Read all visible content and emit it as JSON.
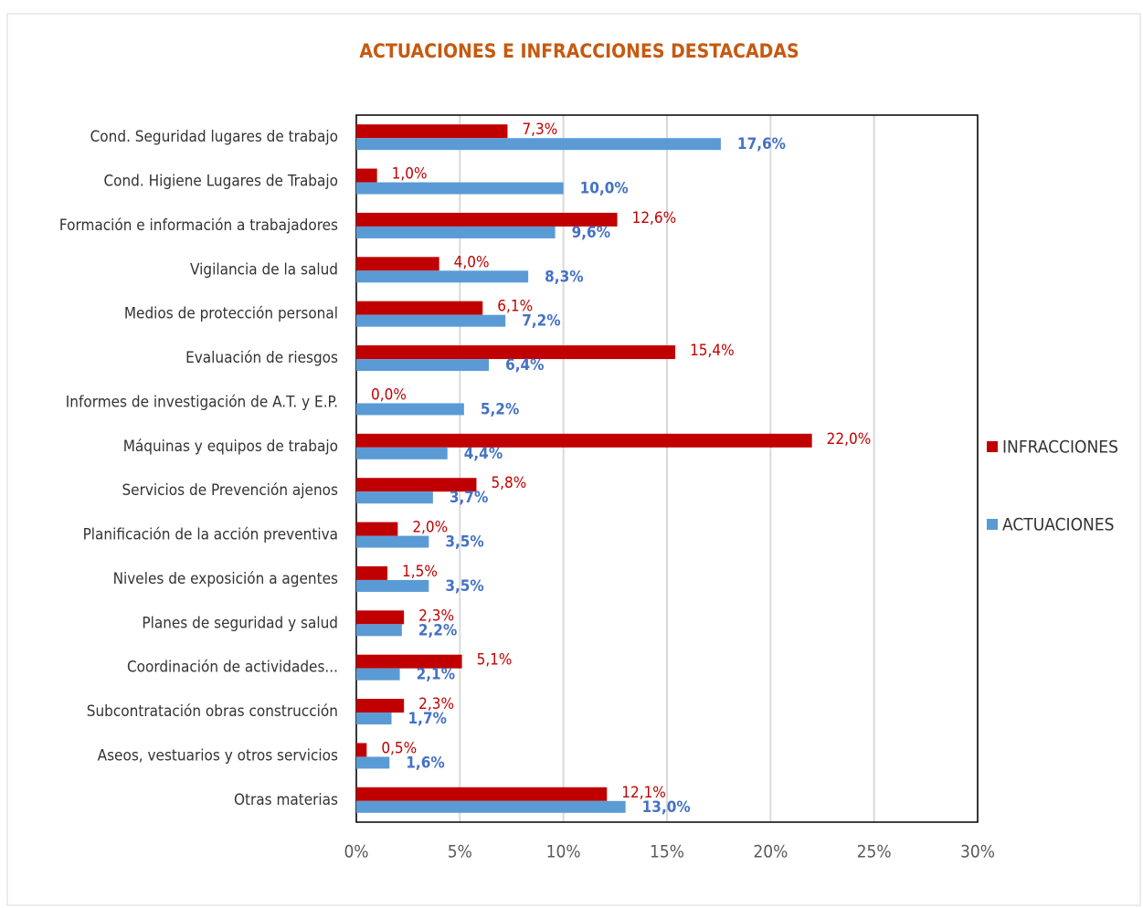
{
  "chart_data": {
    "type": "hbar",
    "title": "ACTUACIONES E INFRACCIONES DESTACADAS",
    "categories": [
      "Cond. Seguridad lugares de trabajo",
      "Cond. Higiene Lugares de Trabajo",
      "Formación e información a trabajadores",
      "Vigilancia de la salud",
      "Medios de protección personal",
      "Evaluación de riesgos",
      "Informes de investigación de A.T. y E.P.",
      "Máquinas y equipos de trabajo",
      "Servicios de Prevención ajenos",
      "Planificación de la acción preventiva",
      "Niveles de exposición a agentes",
      "Planes de seguridad y salud",
      "Coordinación de actividades...",
      "Subcontratación obras construcción",
      "Aseos, vestuarios y otros servicios",
      "Otras materias"
    ],
    "series": [
      {
        "name": "INFRACCIONES",
        "color": "#c00000",
        "values": [
          7.3,
          1.0,
          12.6,
          4.0,
          6.1,
          15.4,
          0.0,
          22.0,
          5.8,
          2.0,
          1.5,
          2.3,
          5.1,
          2.3,
          0.5,
          12.1
        ],
        "value_labels": [
          "7,3%",
          "1,0%",
          "12,6%",
          "4,0%",
          "6,1%",
          "15,4%",
          "0,0%",
          "22,0%",
          "5,8%",
          "2,0%",
          "1,5%",
          "2,3%",
          "5,1%",
          "2,3%",
          "0,5%",
          "12,1%"
        ]
      },
      {
        "name": "ACTUACIONES",
        "color": "#5b9bd5",
        "values": [
          17.6,
          10.0,
          9.6,
          8.3,
          7.2,
          6.4,
          5.2,
          4.4,
          3.7,
          3.5,
          3.5,
          2.2,
          2.1,
          1.7,
          1.6,
          13.0
        ],
        "value_labels": [
          "17,6%",
          "10,0%",
          "9,6%",
          "8,3%",
          "7,2%",
          "6,4%",
          "5,2%",
          "4,4%",
          "3,7%",
          "3,5%",
          "3,5%",
          "2,2%",
          "2,1%",
          "1,7%",
          "1,6%",
          "13,0%"
        ]
      }
    ],
    "xlim": [
      0,
      30
    ],
    "xticks": [
      {
        "value": 0,
        "label": "0%"
      },
      {
        "value": 5,
        "label": "5%"
      },
      {
        "value": 10,
        "label": "10%"
      },
      {
        "value": 15,
        "label": "15%"
      },
      {
        "value": 20,
        "label": "20%"
      },
      {
        "value": 25,
        "label": "25%"
      },
      {
        "value": 30,
        "label": "30%"
      }
    ],
    "grid": true,
    "legend": "right"
  }
}
